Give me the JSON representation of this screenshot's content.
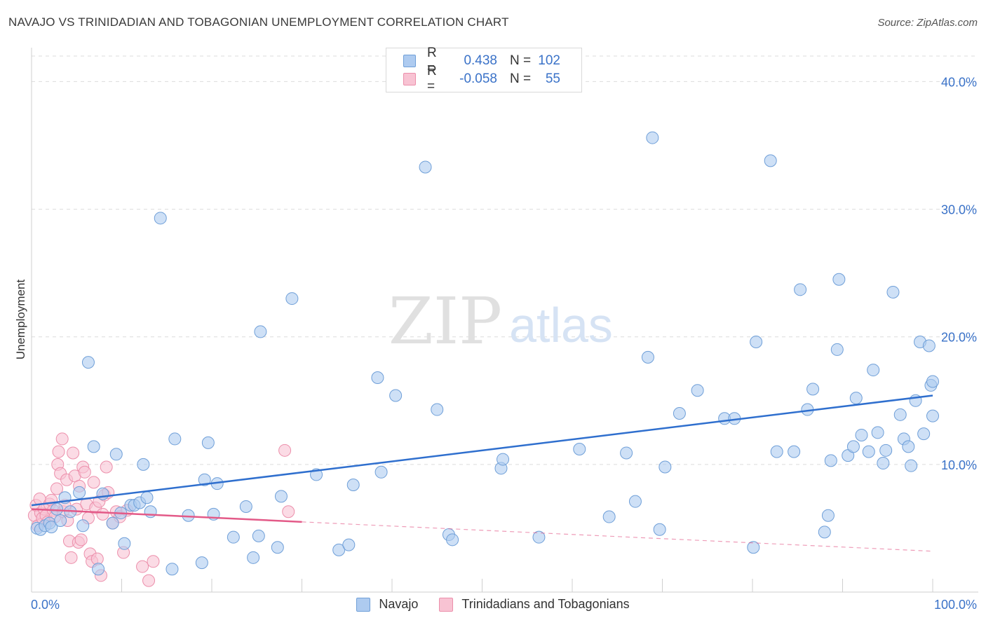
{
  "header": {
    "title": "NAVAJO VS TRINIDADIAN AND TOBAGONIAN UNEMPLOYMENT CORRELATION CHART",
    "source": "Source: ZipAtlas.com"
  },
  "legend": {
    "rows": [
      {
        "r_label": "R =",
        "r_value": "0.438",
        "n_label": "N =",
        "n_value": "102"
      },
      {
        "r_label": "R =",
        "r_value": "-0.058",
        "n_label": "N =",
        "n_value": "55"
      }
    ]
  },
  "watermark": {
    "zip": "ZIP",
    "atlas": "atlas"
  },
  "colors": {
    "navajo_fill": "#aecbf0",
    "navajo_stroke": "#6f9fd8",
    "navajo_line": "#2f6fce",
    "trini_fill": "#f8c3d3",
    "trini_stroke": "#ec8fab",
    "trini_line": "#e35a88",
    "tick_label": "#3a72c8",
    "grid": "#dcdcdc"
  },
  "chart_data": {
    "type": "scatter",
    "title": "NAVAJO VS TRINIDADIAN AND TOBAGONIAN UNEMPLOYMENT CORRELATION CHART",
    "xlabel": "",
    "ylabel": "Unemployment",
    "xlim": [
      0,
      100
    ],
    "ylim": [
      0,
      42
    ],
    "x_tick_labels": [
      "0.0%",
      "100.0%"
    ],
    "y_ticks": [
      10,
      20,
      30,
      40
    ],
    "y_tick_labels": [
      "10.0%",
      "20.0%",
      "30.0%",
      "40.0%"
    ],
    "grid": true,
    "legend_position": "bottom",
    "series": [
      {
        "name": "Navajo",
        "trend": {
          "x": [
            0,
            100
          ],
          "y": [
            6.8,
            15.4
          ]
        },
        "points": [
          [
            0.6,
            5.0
          ],
          [
            1.0,
            4.9
          ],
          [
            1.5,
            5.2
          ],
          [
            2.0,
            5.4
          ],
          [
            2.2,
            5.1
          ],
          [
            2.8,
            6.5
          ],
          [
            3.2,
            5.6
          ],
          [
            3.7,
            7.4
          ],
          [
            4.3,
            6.3
          ],
          [
            5.3,
            7.8
          ],
          [
            5.7,
            5.2
          ],
          [
            6.3,
            18.0
          ],
          [
            6.9,
            11.4
          ],
          [
            7.4,
            1.8
          ],
          [
            7.9,
            7.7
          ],
          [
            9.0,
            5.4
          ],
          [
            9.4,
            10.8
          ],
          [
            9.9,
            6.2
          ],
          [
            10.3,
            3.8
          ],
          [
            11.0,
            6.8
          ],
          [
            11.4,
            6.8
          ],
          [
            12.0,
            7.0
          ],
          [
            12.4,
            10.0
          ],
          [
            12.8,
            7.4
          ],
          [
            13.2,
            6.3
          ],
          [
            14.3,
            29.3
          ],
          [
            15.6,
            1.8
          ],
          [
            15.9,
            12.0
          ],
          [
            17.4,
            6.0
          ],
          [
            18.9,
            2.3
          ],
          [
            19.2,
            8.8
          ],
          [
            19.6,
            11.7
          ],
          [
            20.2,
            6.1
          ],
          [
            20.6,
            8.5
          ],
          [
            22.4,
            4.3
          ],
          [
            23.8,
            6.7
          ],
          [
            24.6,
            2.7
          ],
          [
            25.2,
            4.4
          ],
          [
            25.4,
            20.4
          ],
          [
            27.3,
            3.5
          ],
          [
            27.7,
            7.5
          ],
          [
            28.9,
            23.0
          ],
          [
            31.6,
            9.2
          ],
          [
            34.1,
            3.3
          ],
          [
            35.2,
            3.7
          ],
          [
            35.7,
            8.4
          ],
          [
            38.4,
            16.8
          ],
          [
            38.8,
            9.4
          ],
          [
            40.4,
            15.4
          ],
          [
            43.7,
            33.3
          ],
          [
            45.0,
            14.3
          ],
          [
            46.3,
            4.5
          ],
          [
            46.7,
            4.1
          ],
          [
            52.1,
            9.7
          ],
          [
            52.3,
            10.4
          ],
          [
            56.3,
            4.3
          ],
          [
            60.8,
            11.2
          ],
          [
            64.1,
            5.9
          ],
          [
            66.0,
            10.9
          ],
          [
            67.0,
            7.1
          ],
          [
            68.4,
            18.4
          ],
          [
            68.9,
            35.6
          ],
          [
            69.7,
            4.9
          ],
          [
            70.3,
            9.8
          ],
          [
            71.9,
            14.0
          ],
          [
            73.9,
            15.8
          ],
          [
            76.9,
            13.6
          ],
          [
            78.0,
            13.6
          ],
          [
            80.1,
            3.5
          ],
          [
            80.4,
            19.6
          ],
          [
            82.0,
            33.8
          ],
          [
            82.7,
            11.0
          ],
          [
            84.6,
            11.0
          ],
          [
            85.3,
            23.7
          ],
          [
            86.1,
            14.3
          ],
          [
            86.7,
            15.9
          ],
          [
            88.0,
            4.7
          ],
          [
            88.4,
            6.0
          ],
          [
            88.7,
            10.3
          ],
          [
            89.4,
            19.0
          ],
          [
            89.6,
            24.5
          ],
          [
            90.6,
            10.7
          ],
          [
            91.2,
            11.4
          ],
          [
            91.5,
            15.2
          ],
          [
            92.1,
            12.3
          ],
          [
            92.9,
            11.0
          ],
          [
            93.4,
            17.4
          ],
          [
            93.9,
            12.5
          ],
          [
            94.5,
            10.1
          ],
          [
            94.8,
            11.1
          ],
          [
            95.6,
            23.5
          ],
          [
            96.4,
            13.9
          ],
          [
            96.8,
            12.0
          ],
          [
            97.3,
            11.4
          ],
          [
            97.6,
            9.9
          ],
          [
            98.1,
            15.0
          ],
          [
            98.6,
            19.6
          ],
          [
            99.0,
            12.4
          ],
          [
            99.6,
            19.3
          ],
          [
            99.8,
            16.2
          ],
          [
            100.0,
            16.5
          ],
          [
            100.0,
            13.8
          ]
        ]
      },
      {
        "name": "Trinidadians and Tobagonians",
        "trend": {
          "x": [
            0,
            30
          ],
          "y": [
            6.5,
            5.5
          ]
        },
        "trend_extension": {
          "x": [
            30,
            100
          ],
          "y": [
            5.5,
            3.2
          ]
        },
        "points": [
          [
            0.3,
            6.0
          ],
          [
            0.5,
            6.8
          ],
          [
            0.7,
            5.2
          ],
          [
            0.9,
            7.3
          ],
          [
            1.0,
            6.2
          ],
          [
            1.2,
            5.8
          ],
          [
            1.4,
            6.5
          ],
          [
            1.6,
            6.0
          ],
          [
            1.8,
            5.5
          ],
          [
            2.0,
            6.9
          ],
          [
            2.2,
            7.2
          ],
          [
            2.4,
            6.4
          ],
          [
            2.6,
            5.9
          ],
          [
            2.8,
            8.1
          ],
          [
            2.9,
            10.0
          ],
          [
            3.0,
            11.0
          ],
          [
            3.2,
            9.3
          ],
          [
            3.4,
            12.0
          ],
          [
            3.5,
            6.3
          ],
          [
            3.7,
            6.8
          ],
          [
            3.9,
            8.8
          ],
          [
            4.0,
            5.6
          ],
          [
            4.2,
            4.0
          ],
          [
            4.4,
            2.7
          ],
          [
            4.6,
            10.9
          ],
          [
            4.8,
            9.1
          ],
          [
            5.0,
            6.5
          ],
          [
            5.2,
            3.9
          ],
          [
            5.3,
            8.3
          ],
          [
            5.5,
            4.1
          ],
          [
            5.7,
            9.8
          ],
          [
            5.9,
            9.4
          ],
          [
            6.1,
            6.9
          ],
          [
            6.3,
            5.8
          ],
          [
            6.5,
            3.0
          ],
          [
            6.7,
            2.4
          ],
          [
            6.9,
            8.6
          ],
          [
            7.1,
            6.6
          ],
          [
            7.3,
            2.6
          ],
          [
            7.5,
            7.1
          ],
          [
            7.7,
            1.3
          ],
          [
            7.9,
            6.1
          ],
          [
            8.1,
            7.6
          ],
          [
            8.3,
            9.8
          ],
          [
            8.5,
            7.8
          ],
          [
            9.0,
            5.4
          ],
          [
            9.4,
            6.3
          ],
          [
            9.8,
            5.9
          ],
          [
            10.2,
            3.1
          ],
          [
            10.6,
            6.4
          ],
          [
            12.3,
            2.0
          ],
          [
            13.0,
            0.9
          ],
          [
            13.5,
            2.4
          ],
          [
            28.1,
            11.1
          ],
          [
            28.5,
            6.3
          ]
        ]
      }
    ]
  }
}
